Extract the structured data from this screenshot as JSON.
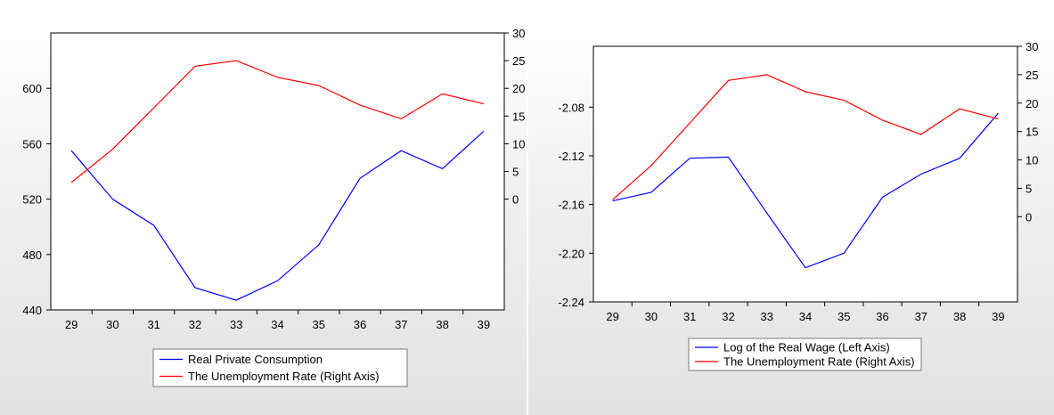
{
  "chart_data": [
    {
      "type": "line",
      "x": [
        "29",
        "30",
        "31",
        "32",
        "33",
        "34",
        "35",
        "36",
        "37",
        "38",
        "39"
      ],
      "series": [
        {
          "name": "Real Private Consumption",
          "axis": "left",
          "color": "#0000ff",
          "values": [
            555,
            520,
            501,
            456,
            447,
            461,
            487,
            535,
            555,
            542,
            569
          ]
        },
        {
          "name": "The Unemployment Rate (Right Axis)",
          "axis": "right",
          "color": "#ff0000",
          "values": [
            3.0,
            9.0,
            16.5,
            24.0,
            25.0,
            22.0,
            20.5,
            17.0,
            14.5,
            19.0,
            17.2
          ]
        }
      ],
      "left_axis": {
        "ylim": [
          440,
          640
        ],
        "ticks": [
          440,
          480,
          520,
          560,
          600
        ]
      },
      "right_axis": {
        "ylim": [
          -20,
          30
        ],
        "ticks": [
          0,
          5,
          10,
          15,
          20,
          25,
          30
        ]
      },
      "legend_placement": "bottom",
      "grid": false
    },
    {
      "type": "line",
      "x": [
        "29",
        "30",
        "31",
        "32",
        "33",
        "34",
        "35",
        "36",
        "37",
        "38",
        "39"
      ],
      "series": [
        {
          "name": "Log of the Real Wage (Left Axis)",
          "axis": "left",
          "color": "#0000ff",
          "values": [
            -2.157,
            -2.15,
            -2.122,
            -2.121,
            -2.167,
            -2.212,
            -2.2,
            -2.154,
            -2.135,
            -2.122,
            -2.085
          ]
        },
        {
          "name": "The Unemployment Rate (Right Axis)",
          "axis": "right",
          "color": "#ff0000",
          "values": [
            3.0,
            9.0,
            16.5,
            24.0,
            25.0,
            22.0,
            20.5,
            17.0,
            14.5,
            19.0,
            17.2
          ]
        }
      ],
      "left_axis": {
        "ylim": [
          -2.24,
          -2.03
        ],
        "ticks": [
          -2.24,
          -2.2,
          -2.16,
          -2.12,
          -2.08
        ]
      },
      "right_axis": {
        "ylim": [
          -15,
          30
        ],
        "ticks": [
          0,
          5,
          10,
          15,
          20,
          25,
          30
        ]
      },
      "legend_placement": "bottom",
      "grid": false
    }
  ]
}
